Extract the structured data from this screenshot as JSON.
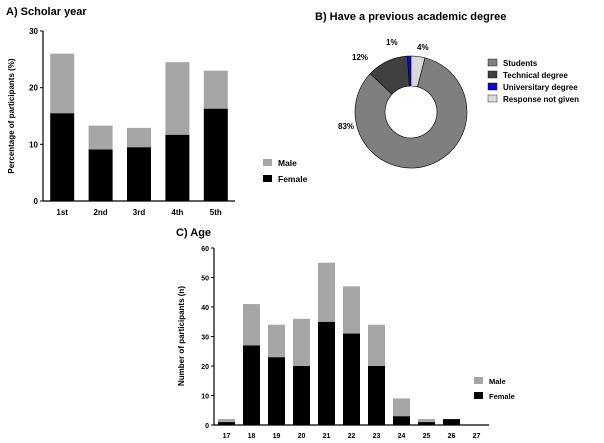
{
  "colors": {
    "male": "#a6a6a6",
    "female": "#000000",
    "students": "#7f7f7f",
    "technical": "#404040",
    "university": "#0a0ad0",
    "no_response": "#d9d9d9"
  },
  "chart_data": [
    {
      "id": "A",
      "type": "bar",
      "stacked": true,
      "title": "A) Scholar year",
      "xlabel": "",
      "ylabel": "Percentage of participants (%)",
      "ylim": [
        0,
        30
      ],
      "yticks": [
        0,
        10,
        20,
        30
      ],
      "categories": [
        "1st",
        "2nd",
        "3rd",
        "4th",
        "5th"
      ],
      "series": [
        {
          "name": "Female",
          "values": [
            15.5,
            9.1,
            9.5,
            11.7,
            16.3
          ]
        },
        {
          "name": "Male",
          "values": [
            10.5,
            4.2,
            3.4,
            12.8,
            6.7
          ]
        }
      ],
      "legend_order": [
        "Male",
        "Female"
      ],
      "legend": "right",
      "grid": false
    },
    {
      "id": "B",
      "type": "pie",
      "donut": true,
      "title": "B) Have a previous academic degree",
      "slices": [
        {
          "name": "Students",
          "value": 83,
          "label": "83%"
        },
        {
          "name": "Technical degree",
          "value": 12,
          "label": "12%"
        },
        {
          "name": "Universitary degree",
          "value": 1,
          "label": "1%"
        },
        {
          "name": "Response not given",
          "value": 4,
          "label": "4%"
        }
      ],
      "legend": "right"
    },
    {
      "id": "C",
      "type": "bar",
      "stacked": true,
      "title": "C) Age",
      "xlabel": "",
      "ylabel": "Number of participants (n)",
      "ylim": [
        0,
        60
      ],
      "yticks": [
        0,
        10,
        20,
        30,
        40,
        50,
        60
      ],
      "categories": [
        "17",
        "18",
        "19",
        "20",
        "21",
        "22",
        "23",
        "24",
        "25",
        "26",
        "27"
      ],
      "series": [
        {
          "name": "Female",
          "values": [
            1,
            27,
            23,
            20,
            35,
            31,
            20,
            3,
            1,
            2,
            0
          ]
        },
        {
          "name": "Male",
          "values": [
            1,
            14,
            11,
            16,
            20,
            16,
            14,
            6,
            1,
            0,
            0
          ]
        }
      ],
      "legend_order": [
        "Male",
        "Female"
      ],
      "legend": "bottom-right",
      "grid": false
    }
  ]
}
